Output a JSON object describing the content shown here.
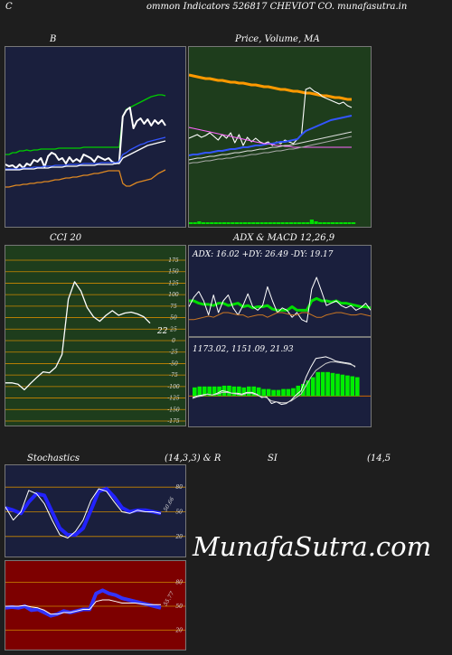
{
  "header": {
    "left": "C",
    "title": "ommon  Indicators 526817 CHEVIOT CO. munafasutra.in"
  },
  "watermark": "MunafaSutra.com",
  "chart_data": [
    {
      "id": "bb",
      "type": "line",
      "title": "B",
      "bg": "#1a1f3d",
      "series": [
        {
          "color": "#00cc00",
          "values": [
            172,
            172,
            170,
            170,
            168,
            168,
            167,
            168,
            167,
            167,
            166,
            166,
            166,
            166,
            166,
            165,
            165,
            165,
            165,
            165,
            165,
            165,
            164,
            164,
            164,
            164,
            164,
            164,
            164,
            164,
            164,
            164,
            164,
            130,
            122,
            120,
            118,
            116,
            114,
            112,
            110,
            108,
            107,
            106,
            106,
            107
          ]
        },
        {
          "color": "#ffffff",
          "values": [
            183,
            185,
            184,
            187,
            183,
            187,
            182,
            184,
            178,
            180,
            176,
            186,
            174,
            170,
            172,
            178,
            176,
            182,
            175,
            180,
            177,
            180,
            172,
            174,
            176,
            180,
            174,
            176,
            178,
            176,
            180,
            182,
            180,
            130,
            123,
            120,
            143,
            135,
            132,
            138,
            133,
            140,
            134,
            138,
            134,
            140
          ]
        },
        {
          "color": "#3355ff",
          "values": [
            188,
            188,
            188,
            188,
            188,
            187,
            187,
            187,
            186,
            186,
            186,
            185,
            185,
            185,
            184,
            184,
            184,
            184,
            183,
            183,
            183,
            183,
            182,
            182,
            182,
            182,
            182,
            181,
            181,
            181,
            181,
            181,
            180,
            172,
            170,
            167,
            165,
            163,
            161,
            160,
            158,
            157,
            156,
            155,
            154,
            153
          ]
        },
        {
          "color": "#ffffff",
          "values": [
            189,
            189,
            189,
            189,
            189,
            188,
            188,
            188,
            188,
            187,
            187,
            187,
            187,
            186,
            186,
            186,
            186,
            185,
            185,
            185,
            185,
            184,
            184,
            184,
            184,
            184,
            183,
            183,
            183,
            183,
            183,
            182,
            182,
            176,
            174,
            172,
            170,
            168,
            166,
            164,
            162,
            161,
            160,
            159,
            158,
            157
          ]
        },
        {
          "color": "#dd8822",
          "values": [
            208,
            208,
            207,
            206,
            206,
            205,
            205,
            204,
            204,
            203,
            203,
            202,
            202,
            201,
            200,
            200,
            199,
            198,
            198,
            197,
            197,
            196,
            195,
            195,
            194,
            193,
            193,
            192,
            191,
            190,
            190,
            190,
            190,
            204,
            207,
            207,
            205,
            203,
            202,
            201,
            200,
            199,
            196,
            193,
            191,
            189
          ]
        }
      ]
    },
    {
      "id": "price",
      "type": "line",
      "title": "Price,  Volume,  MA",
      "bg": "#1e3d1c",
      "series": [
        {
          "color": "#ff9900",
          "width": 3,
          "values": [
            84,
            85,
            86,
            87,
            88,
            88,
            89,
            90,
            90,
            91,
            92,
            92,
            93,
            93,
            94,
            95,
            95,
            96,
            97,
            97,
            98,
            99,
            100,
            100,
            101,
            102,
            102,
            103,
            104,
            104,
            105,
            106,
            107,
            107,
            108,
            109,
            109,
            110,
            111,
            111
          ]
        },
        {
          "color": "#ffffff",
          "values": [
            154,
            152,
            150,
            153,
            151,
            148,
            152,
            156,
            150,
            154,
            148,
            159,
            150,
            162,
            153,
            158,
            154,
            158,
            160,
            158,
            162,
            158,
            160,
            156,
            158,
            160,
            155,
            150,
            100,
            98,
            102,
            104,
            108,
            110,
            112,
            114,
            116,
            114,
            118,
            120
          ]
        },
        {
          "color": "#3355ff",
          "width": 2,
          "values": [
            173,
            172,
            172,
            171,
            170,
            170,
            169,
            168,
            168,
            167,
            166,
            166,
            165,
            164,
            164,
            163,
            162,
            162,
            161,
            160,
            160,
            159,
            158,
            158,
            157,
            156,
            155,
            150,
            146,
            144,
            142,
            140,
            138,
            136,
            134,
            133,
            132,
            131,
            130,
            129
          ]
        },
        {
          "color": "#ff66ff",
          "values": [
            142,
            143,
            144,
            145,
            146,
            147,
            148,
            149,
            150,
            151,
            152,
            153,
            154,
            155,
            156,
            157,
            158,
            159,
            160,
            160,
            161,
            162,
            162,
            163,
            163,
            164,
            164,
            164,
            164,
            164,
            164,
            164,
            164,
            164,
            164,
            164,
            164,
            164,
            164,
            164
          ]
        },
        {
          "color": "#dddddd",
          "values": [
            178,
            177,
            176,
            176,
            175,
            174,
            174,
            173,
            172,
            172,
            171,
            170,
            170,
            169,
            168,
            168,
            167,
            166,
            166,
            165,
            164,
            164,
            163,
            162,
            162,
            161,
            160,
            159,
            158,
            157,
            156,
            155,
            154,
            153,
            152,
            151,
            150,
            149,
            148,
            147
          ]
        },
        {
          "color": "#aaaaaa",
          "values": [
            182,
            181,
            181,
            180,
            179,
            179,
            178,
            177,
            177,
            176,
            176,
            175,
            174,
            174,
            173,
            172,
            172,
            171,
            170,
            170,
            169,
            168,
            168,
            167,
            166,
            166,
            165,
            164,
            163,
            162,
            161,
            160,
            159,
            158,
            157,
            156,
            155,
            154,
            153,
            152
          ]
        }
      ],
      "volume_color": "#00dd00",
      "volume": [
        2,
        2,
        3,
        2,
        2,
        2,
        2,
        2,
        2,
        2,
        2,
        2,
        2,
        2,
        2,
        2,
        2,
        2,
        2,
        2,
        2,
        2,
        2,
        2,
        2,
        2,
        2,
        2,
        2,
        5,
        3,
        2,
        2,
        2,
        2,
        2,
        2,
        2,
        2,
        2
      ]
    },
    {
      "id": "cci",
      "type": "line",
      "title": "CCI 20",
      "bg": "#1e3d1c",
      "ylim": [
        -175,
        175
      ],
      "ticks": [
        "175",
        "150",
        "125",
        "100",
        "75",
        "50",
        "25",
        "0",
        "-25",
        "-50",
        "-75",
        "-100",
        "-125",
        "-150",
        "-175"
      ],
      "ticks_values": [
        175,
        150,
        125,
        100,
        75,
        50,
        25,
        0,
        -25,
        -50,
        -75,
        -100,
        -125,
        -150,
        -175
      ],
      "value_label": "22",
      "values": [
        -92,
        -92,
        -95,
        -107,
        -93,
        -80,
        -68,
        -70,
        -58,
        -30,
        90,
        128,
        108,
        72,
        52,
        42,
        55,
        65,
        55,
        60,
        62,
        58,
        52,
        38
      ]
    },
    {
      "id": "adx",
      "type": "line",
      "title": "ADX  & MACD 12,26,9",
      "bg": "#1a1f3d",
      "readout": "ADX: 16.02  +DY: 26.49 -DY: 19.17",
      "ylim": [
        0,
        60
      ],
      "series": [
        {
          "color": "#00dd00",
          "width": 3,
          "values": [
            30,
            30,
            28,
            27,
            27,
            26,
            28,
            28,
            26,
            27,
            28,
            25,
            26,
            24,
            25,
            25,
            26,
            23,
            22,
            22,
            22,
            25,
            22,
            22,
            22,
            30,
            32,
            30,
            30,
            29,
            30,
            28,
            28,
            27,
            26,
            25,
            25,
            24
          ]
        },
        {
          "color": "#ffffff",
          "values": [
            25,
            33,
            38,
            30,
            18,
            35,
            20,
            30,
            35,
            24,
            18,
            26,
            36,
            25,
            22,
            26,
            42,
            30,
            20,
            24,
            22,
            16,
            20,
            14,
            12,
            40,
            50,
            38,
            26,
            28,
            30,
            26,
            24,
            26,
            22,
            24,
            28,
            22
          ]
        },
        {
          "color": "#cc7722",
          "values": [
            14,
            14,
            15,
            16,
            17,
            16,
            18,
            20,
            20,
            19,
            18,
            18,
            16,
            17,
            18,
            18,
            16,
            18,
            20,
            20,
            19,
            18,
            18,
            20,
            20,
            18,
            16,
            16,
            18,
            19,
            20,
            20,
            19,
            18,
            18,
            19,
            18,
            17
          ]
        }
      ]
    },
    {
      "id": "macd",
      "type": "line",
      "bg": "#1a1f3d",
      "readout": "1173.02,  1151.09,  21.93",
      "ylim": [
        -40,
        60
      ],
      "series": [
        {
          "color": "#ffffff",
          "values": [
            -6,
            -4,
            -3,
            -2,
            -3,
            -1,
            2,
            1,
            -1,
            -1,
            -2,
            0,
            0,
            -2,
            -6,
            -5,
            -13,
            -11,
            -14,
            -13,
            -9,
            -3,
            2,
            18,
            30,
            40,
            41,
            42,
            40,
            37,
            36,
            35,
            34,
            30
          ]
        },
        {
          "color": "#cccccc",
          "values": [
            -7,
            -5,
            -4,
            -2,
            -3,
            -2,
            0,
            0,
            -1,
            -2,
            -3,
            -1,
            -1,
            -3,
            -5,
            -6,
            -10,
            -11,
            -12,
            -12,
            -10,
            -6,
            -2,
            8,
            18,
            26,
            30,
            34,
            36,
            36,
            35,
            34,
            33,
            31
          ]
        }
      ],
      "hist_color": "#00ee00",
      "hist": [
        6,
        7,
        7,
        7,
        7,
        7,
        8,
        8,
        7,
        7,
        6,
        7,
        7,
        6,
        4,
        4,
        3,
        3,
        4,
        4,
        5,
        8,
        10,
        14,
        18,
        24,
        24,
        24,
        23,
        22,
        21,
        20,
        19,
        18
      ]
    },
    {
      "id": "stoch",
      "type": "line",
      "title": "Stochastics",
      "title2": "(14,3,3) & R",
      "bg": "#1a1f3d",
      "ylim": [
        0,
        100
      ],
      "ticks": [
        "80",
        "50",
        "20"
      ],
      "ticks_values": [
        80,
        50,
        20
      ],
      "side_label": "50.66",
      "series": [
        {
          "color": "#2222ff",
          "width": 4,
          "values": [
            55,
            52,
            48,
            62,
            72,
            70,
            50,
            30,
            22,
            22,
            30,
            52,
            75,
            78,
            68,
            55,
            50,
            52,
            52,
            50,
            48
          ]
        },
        {
          "color": "#ffffff",
          "values": [
            56,
            40,
            50,
            76,
            72,
            60,
            40,
            22,
            18,
            26,
            40,
            64,
            78,
            75,
            62,
            50,
            48,
            52,
            50,
            50,
            48
          ]
        }
      ]
    },
    {
      "id": "rsi",
      "type": "line",
      "title": "SI",
      "title2": "(14,5",
      "bg": "#7d0000",
      "ylim": [
        0,
        100
      ],
      "ticks": [
        "80",
        "50",
        "20"
      ],
      "ticks_values": [
        80,
        50,
        20
      ],
      "side_label": "55.77",
      "series": [
        {
          "color": "#3333ff",
          "width": 4,
          "values": [
            48,
            49,
            48,
            50,
            45,
            46,
            42,
            38,
            40,
            44,
            42,
            44,
            46,
            46,
            66,
            70,
            66,
            64,
            60,
            58,
            56,
            54,
            52,
            50,
            48
          ]
        },
        {
          "color": "#ffffff",
          "values": [
            50,
            50,
            50,
            51,
            49,
            48,
            45,
            40,
            40,
            42,
            42,
            44,
            46,
            46,
            56,
            58,
            58,
            56,
            54,
            54,
            54,
            53,
            52,
            52,
            52
          ]
        }
      ]
    }
  ]
}
